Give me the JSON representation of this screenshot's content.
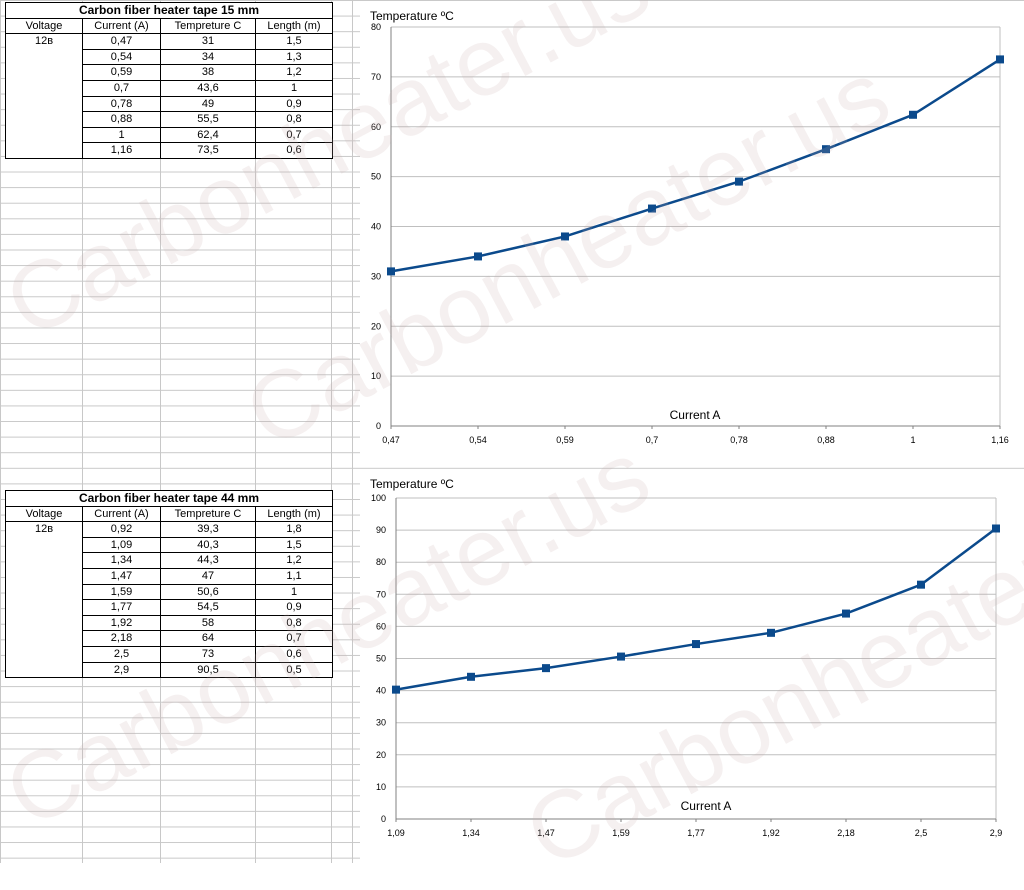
{
  "tables": [
    {
      "title": "Carbon fiber heater tape 15 mm",
      "headers": [
        "Voltage",
        "Current (A)",
        "Tempreture C",
        "Length (m)"
      ],
      "voltage": "12в",
      "rows": [
        [
          "0,47",
          "31",
          "1,5"
        ],
        [
          "0,54",
          "34",
          "1,3"
        ],
        [
          "0,59",
          "38",
          "1,2"
        ],
        [
          "0,7",
          "43,6",
          "1"
        ],
        [
          "0,78",
          "49",
          "0,9"
        ],
        [
          "0,88",
          "55,5",
          "0,8"
        ],
        [
          "1",
          "62,4",
          "0,7"
        ],
        [
          "1,16",
          "73,5",
          "0,6"
        ]
      ]
    },
    {
      "title": "Carbon fiber heater tape 44  mm",
      "headers": [
        "Voltage",
        "Current (A)",
        "Tempreture C",
        "Length (m)"
      ],
      "voltage": "12в",
      "rows": [
        [
          "0,92",
          "39,3",
          "1,8"
        ],
        [
          "1,09",
          "40,3",
          "1,5"
        ],
        [
          "1,34",
          "44,3",
          "1,2"
        ],
        [
          "1,47",
          "47",
          "1,1"
        ],
        [
          "1,59",
          "50,6",
          "1"
        ],
        [
          "1,77",
          "54,5",
          "0,9"
        ],
        [
          "1,92",
          "58",
          "0,8"
        ],
        [
          "2,18",
          "64",
          "0,7"
        ],
        [
          "2,5",
          "73",
          "0,6"
        ],
        [
          "2,9",
          "90,5",
          "0,5"
        ]
      ]
    }
  ],
  "chart_data": [
    {
      "type": "line",
      "ylabel": "Temperature  ºC",
      "xlabel": "Current A",
      "categories": [
        "0,47",
        "0,54",
        "0,59",
        "0,7",
        "0,78",
        "0,88",
        "1",
        "1,16"
      ],
      "values": [
        31,
        34,
        38,
        43.6,
        49,
        55.5,
        62.4,
        73.5
      ],
      "ylim": [
        0,
        80
      ],
      "yticks": [
        0,
        10,
        20,
        30,
        40,
        50,
        60,
        70,
        80
      ],
      "grid": true,
      "color": "#0b4a8c"
    },
    {
      "type": "line",
      "ylabel": "Temperature  ºC",
      "xlabel": "Current A",
      "categories": [
        "1,09",
        "1,34",
        "1,47",
        "1,59",
        "1,77",
        "1,92",
        "2,18",
        "2,5",
        "2,9"
      ],
      "values": [
        40.3,
        44.3,
        47,
        50.6,
        54.5,
        58,
        64,
        73,
        90.5
      ],
      "ylim": [
        0,
        100
      ],
      "yticks": [
        0,
        10,
        20,
        30,
        40,
        50,
        60,
        70,
        80,
        90,
        100
      ],
      "grid": true,
      "color": "#0b4a8c"
    }
  ],
  "watermark": "Carbonheater.us",
  "colors": {
    "series": "#0b4a8c",
    "grid": "#bfbfbf",
    "sheet_grid": "#c8c8c8"
  }
}
